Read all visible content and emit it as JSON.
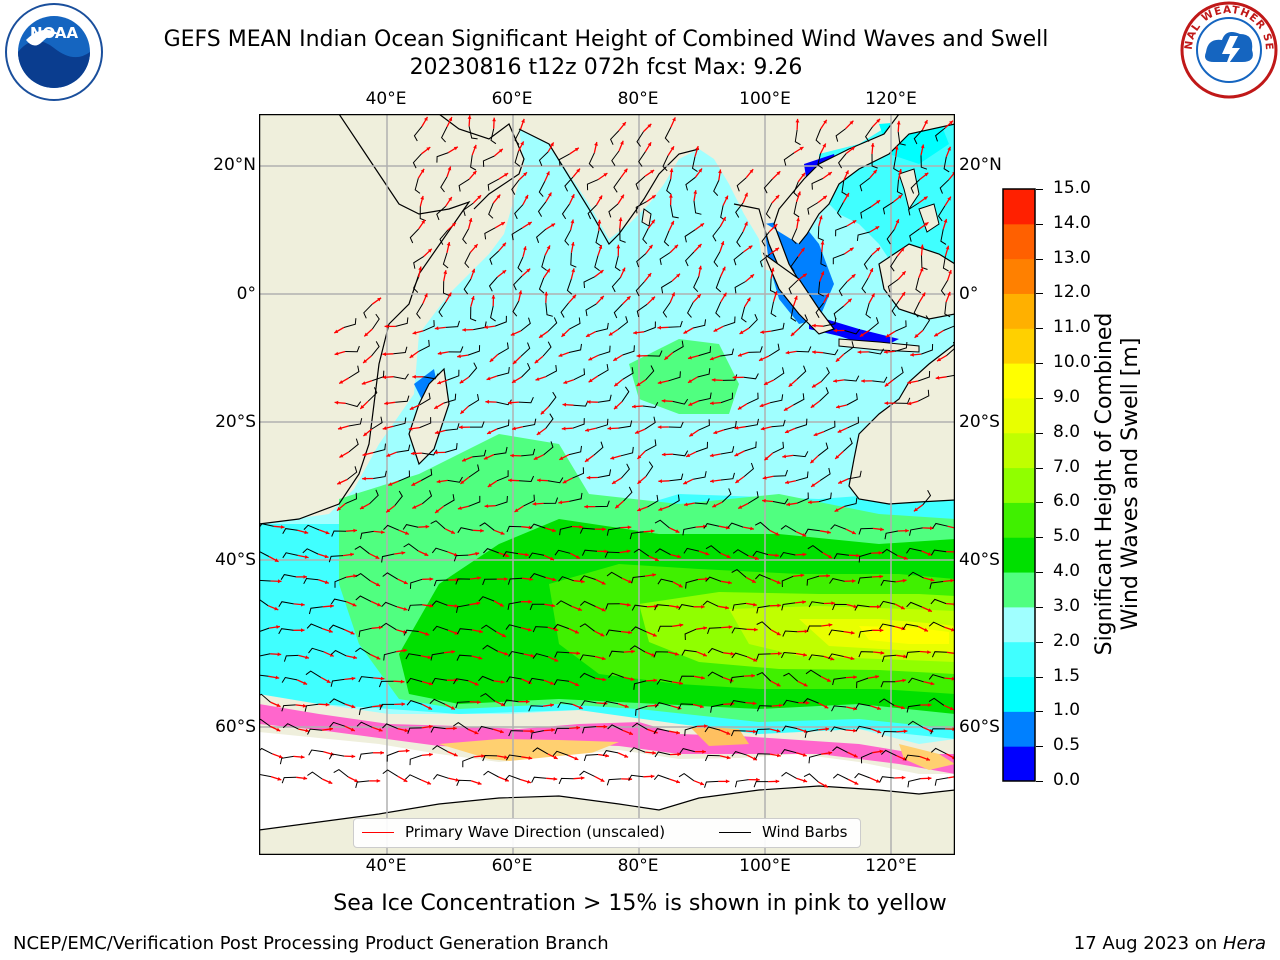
{
  "title_line1": "GEFS MEAN Indian Ocean Significant Height of Combined Wind Waves and Swell",
  "title_line2": "20230816 t12z 072h fcst   Max: 9.26",
  "lon_labels": [
    "40°E",
    "60°E",
    "80°E",
    "100°E",
    "120°E"
  ],
  "lat_labels": [
    "20°N",
    "0°",
    "20°S",
    "40°S",
    "60°S"
  ],
  "colorbar": {
    "label_line1": "Significant Height of Combined",
    "label_line2": "Wind Waves and Swell [m]",
    "ticks": [
      "15.0",
      "14.0",
      "13.0",
      "12.0",
      "11.0",
      "10.0",
      "9.0",
      "8.0",
      "7.0",
      "6.0",
      "5.0",
      "4.0",
      "3.0",
      "2.0",
      "1.5",
      "1.0",
      "0.5",
      "0.0"
    ],
    "colors_bottom_to_top": [
      "#0000ff",
      "#0080ff",
      "#00ffff",
      "#40ffff",
      "#a0ffff",
      "#50ff80",
      "#00e000",
      "#40f000",
      "#90ff00",
      "#c0ff00",
      "#e8ff00",
      "#ffff00",
      "#ffd000",
      "#ffb000",
      "#ff8000",
      "#ff6000",
      "#ff2000"
    ]
  },
  "legend": {
    "wave_label": "Primary Wave Direction (unscaled)",
    "wind_label": "Wind Barbs",
    "wave_color": "#ff0000",
    "wind_color": "#000000"
  },
  "ice_note": "Sea Ice Concentration > 15% is shown in pink to yellow",
  "credit": "NCEP/EMC/Verification Post Processing Product Generation Branch",
  "date_text": "17 Aug 2023 on ",
  "host": "Hera",
  "logos": {
    "left": "NOAA",
    "right": "NATIONAL WEATHER SERVICE"
  },
  "map_colors": {
    "land": "#efefdc",
    "ocean_base": "#a0ffff"
  }
}
